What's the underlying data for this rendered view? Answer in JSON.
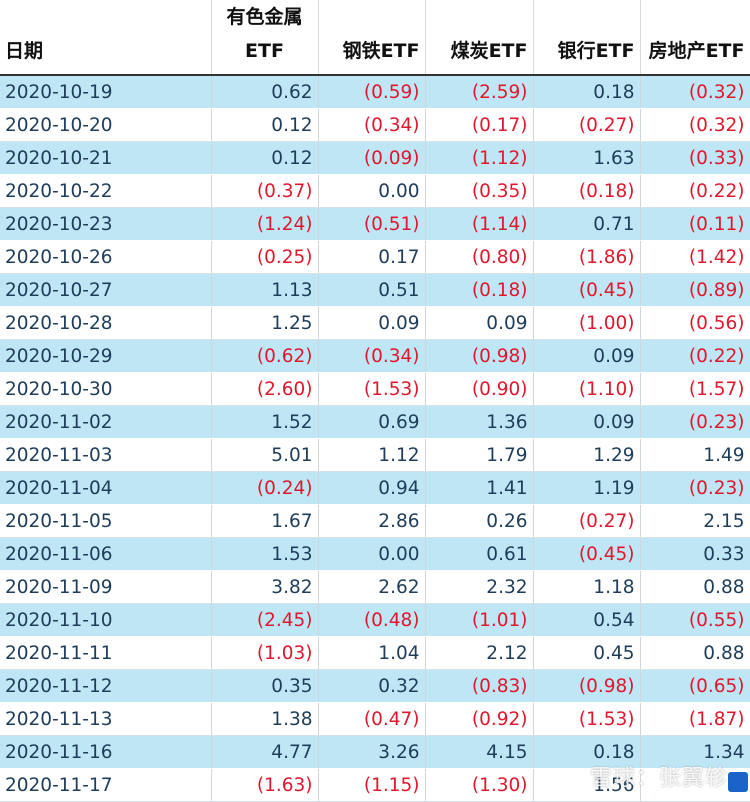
{
  "headers": [
    "日期",
    "有色金属ETF",
    "钢铁ETF",
    "煤炭ETF",
    "银行ETF",
    "房地产ETF"
  ],
  "rows": [
    {
      "date": "2020-10-19",
      "values": [
        "0.62",
        "(0.59)",
        "(2.59)",
        "0.18",
        "(0.32)"
      ]
    },
    {
      "date": "2020-10-20",
      "values": [
        "0.12",
        "(0.34)",
        "(0.17)",
        "(0.27)",
        "(0.32)"
      ]
    },
    {
      "date": "2020-10-21",
      "values": [
        "0.12",
        "(0.09)",
        "(1.12)",
        "1.63",
        "(0.33)"
      ]
    },
    {
      "date": "2020-10-22",
      "values": [
        "(0.37)",
        "0.00",
        "(0.35)",
        "(0.18)",
        "(0.22)"
      ]
    },
    {
      "date": "2020-10-23",
      "values": [
        "(1.24)",
        "(0.51)",
        "(1.14)",
        "0.71",
        "(0.11)"
      ]
    },
    {
      "date": "2020-10-26",
      "values": [
        "(0.25)",
        "0.17",
        "(0.80)",
        "(1.86)",
        "(1.42)"
      ]
    },
    {
      "date": "2020-10-27",
      "values": [
        "1.13",
        "0.51",
        "(0.18)",
        "(0.45)",
        "(0.89)"
      ]
    },
    {
      "date": "2020-10-28",
      "values": [
        "1.25",
        "0.09",
        "0.09",
        "(1.00)",
        "(0.56)"
      ]
    },
    {
      "date": "2020-10-29",
      "values": [
        "(0.62)",
        "(0.34)",
        "(0.98)",
        "0.09",
        "(0.22)"
      ]
    },
    {
      "date": "2020-10-30",
      "values": [
        "(2.60)",
        "(1.53)",
        "(0.90)",
        "(1.10)",
        "(1.57)"
      ]
    },
    {
      "date": "2020-11-02",
      "values": [
        "1.52",
        "0.69",
        "1.36",
        "0.09",
        "(0.23)"
      ]
    },
    {
      "date": "2020-11-03",
      "values": [
        "5.01",
        "1.12",
        "1.79",
        "1.29",
        "1.49"
      ]
    },
    {
      "date": "2020-11-04",
      "values": [
        "(0.24)",
        "0.94",
        "1.41",
        "1.19",
        "(0.23)"
      ]
    },
    {
      "date": "2020-11-05",
      "values": [
        "1.67",
        "2.86",
        "0.26",
        "(0.27)",
        "2.15"
      ]
    },
    {
      "date": "2020-11-06",
      "values": [
        "1.53",
        "0.00",
        "0.61",
        "(0.45)",
        "0.33"
      ]
    },
    {
      "date": "2020-11-09",
      "values": [
        "3.82",
        "2.62",
        "2.32",
        "1.18",
        "0.88"
      ]
    },
    {
      "date": "2020-11-10",
      "values": [
        "(2.45)",
        "(0.48)",
        "(1.01)",
        "0.54",
        "(0.55)"
      ]
    },
    {
      "date": "2020-11-11",
      "values": [
        "(1.03)",
        "1.04",
        "2.12",
        "0.45",
        "0.88"
      ]
    },
    {
      "date": "2020-11-12",
      "values": [
        "0.35",
        "0.32",
        "(0.83)",
        "(0.98)",
        "(0.65)"
      ]
    },
    {
      "date": "2020-11-13",
      "values": [
        "1.38",
        "(0.47)",
        "(0.92)",
        "(1.53)",
        "(1.87)"
      ]
    },
    {
      "date": "2020-11-16",
      "values": [
        "4.77",
        "3.26",
        "4.15",
        "0.18",
        "1.34"
      ]
    },
    {
      "date": "2020-11-17",
      "values": [
        "(1.63)",
        "(1.15)",
        "(1.30)",
        "1.56",
        ""
      ]
    }
  ],
  "watermark": "雪球：张翼轸",
  "colors": {
    "band": "#bfe6f5",
    "negative": "#e0182d",
    "text": "#1f3d5a"
  }
}
